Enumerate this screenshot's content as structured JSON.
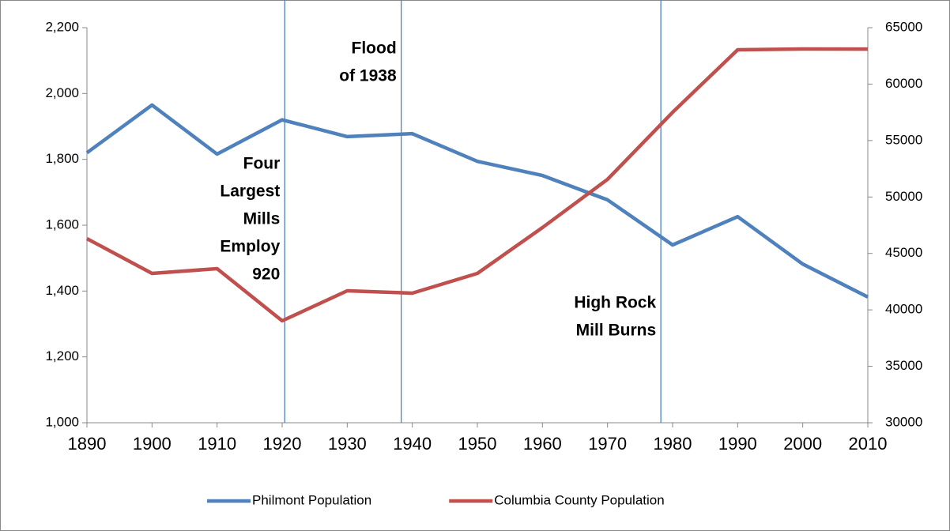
{
  "chart_data": {
    "type": "line",
    "x": [
      1890,
      1900,
      1910,
      1920,
      1930,
      1940,
      1950,
      1960,
      1970,
      1980,
      1990,
      2000,
      2010
    ],
    "xlim": [
      1890,
      2010
    ],
    "xticks": [
      1890,
      1900,
      1910,
      1920,
      1930,
      1940,
      1950,
      1960,
      1970,
      1980,
      1990,
      2000,
      2010
    ],
    "ylim": [
      1000,
      2200
    ],
    "yticks": [
      {
        "value": 1000,
        "label": "1,000"
      },
      {
        "value": 1200,
        "label": "1,200"
      },
      {
        "value": 1400,
        "label": "1,400"
      },
      {
        "value": 1600,
        "label": "1,600"
      },
      {
        "value": 1800,
        "label": "1,800"
      },
      {
        "value": 2000,
        "label": "2,000"
      },
      {
        "value": 2200,
        "label": "2,200"
      }
    ],
    "y2lim": [
      30000,
      65000
    ],
    "y2ticks": [
      30000,
      35000,
      40000,
      45000,
      50000,
      55000,
      60000,
      65000
    ],
    "series": [
      {
        "name": "Philmont Population",
        "color": "#4f81bd",
        "values": [
          1820,
          1965,
          1816,
          1920,
          1869,
          1878,
          1794,
          1751,
          1677,
          1540,
          1626,
          1482,
          1382
        ]
      },
      {
        "name": "Columbia County Population",
        "color": "#c0504d",
        "axis": "y2",
        "values": [
          46310,
          43230,
          43650,
          39030,
          41690,
          41480,
          43230,
          47290,
          51560,
          57500,
          63040,
          63110,
          63100
        ]
      }
    ],
    "annotations": [
      {
        "x": 1920.4,
        "lines": [
          "Four",
          "Largest",
          "Mills",
          "Employ",
          "920"
        ]
      },
      {
        "x": 1938.3,
        "lines": [
          "Flood",
          "of 1938"
        ]
      },
      {
        "x": 1978.2,
        "lines": [
          "High Rock",
          "Mill Burns"
        ]
      }
    ],
    "legend": "bottom"
  }
}
